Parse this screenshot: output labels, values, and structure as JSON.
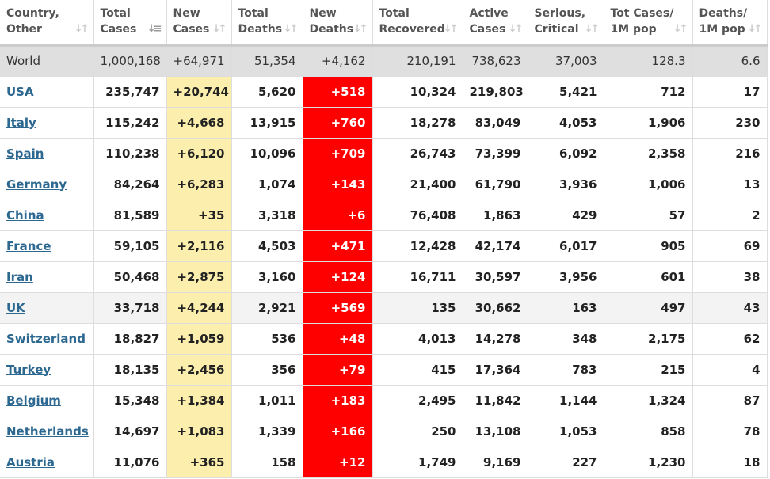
{
  "colors": {
    "new_cases_bg": "#fcefad",
    "new_deaths_bg": "#ff0000",
    "link": "#2d6891",
    "world_bg": "#dfdfdf"
  },
  "headers": [
    {
      "l1": "Country,",
      "l2": "Other"
    },
    {
      "l1": "Total",
      "l2": "Cases",
      "sorted": true
    },
    {
      "l1": "New",
      "l2": "Cases"
    },
    {
      "l1": "Total",
      "l2": "Deaths"
    },
    {
      "l1": "New",
      "l2": "Deaths"
    },
    {
      "l1": "Total",
      "l2": "Recovered"
    },
    {
      "l1": "Active",
      "l2": "Cases"
    },
    {
      "l1": "Serious,",
      "l2": "Critical"
    },
    {
      "l1": "Tot Cases/",
      "l2": "1M pop"
    },
    {
      "l1": "Deaths/",
      "l2": "1M pop"
    }
  ],
  "world": [
    "World",
    "1,000,168",
    "+64,971",
    "51,354",
    "+4,162",
    "210,191",
    "738,623",
    "37,003",
    "128.3",
    "6.6"
  ],
  "rows": [
    [
      "USA",
      "235,747",
      "+20,744",
      "5,620",
      "+518",
      "10,324",
      "219,803",
      "5,421",
      "712",
      "17"
    ],
    [
      "Italy",
      "115,242",
      "+4,668",
      "13,915",
      "+760",
      "18,278",
      "83,049",
      "4,053",
      "1,906",
      "230"
    ],
    [
      "Spain",
      "110,238",
      "+6,120",
      "10,096",
      "+709",
      "26,743",
      "73,399",
      "6,092",
      "2,358",
      "216"
    ],
    [
      "Germany",
      "84,264",
      "+6,283",
      "1,074",
      "+143",
      "21,400",
      "61,790",
      "3,936",
      "1,006",
      "13"
    ],
    [
      "China",
      "81,589",
      "+35",
      "3,318",
      "+6",
      "76,408",
      "1,863",
      "429",
      "57",
      "2"
    ],
    [
      "France",
      "59,105",
      "+2,116",
      "4,503",
      "+471",
      "12,428",
      "42,174",
      "6,017",
      "905",
      "69"
    ],
    [
      "Iran",
      "50,468",
      "+2,875",
      "3,160",
      "+124",
      "16,711",
      "30,597",
      "3,956",
      "601",
      "38"
    ],
    [
      "UK",
      "33,718",
      "+4,244",
      "2,921",
      "+569",
      "135",
      "30,662",
      "163",
      "497",
      "43"
    ],
    [
      "Switzerland",
      "18,827",
      "+1,059",
      "536",
      "+48",
      "4,013",
      "14,278",
      "348",
      "2,175",
      "62"
    ],
    [
      "Turkey",
      "18,135",
      "+2,456",
      "356",
      "+79",
      "415",
      "17,364",
      "783",
      "215",
      "4"
    ],
    [
      "Belgium",
      "15,348",
      "+1,384",
      "1,011",
      "+183",
      "2,495",
      "11,842",
      "1,144",
      "1,324",
      "87"
    ],
    [
      "Netherlands",
      "14,697",
      "+1,083",
      "1,339",
      "+166",
      "250",
      "13,108",
      "1,053",
      "858",
      "78"
    ],
    [
      "Austria",
      "11,076",
      "+365",
      "158",
      "+12",
      "1,749",
      "9,169",
      "227",
      "1,230",
      "18"
    ]
  ]
}
